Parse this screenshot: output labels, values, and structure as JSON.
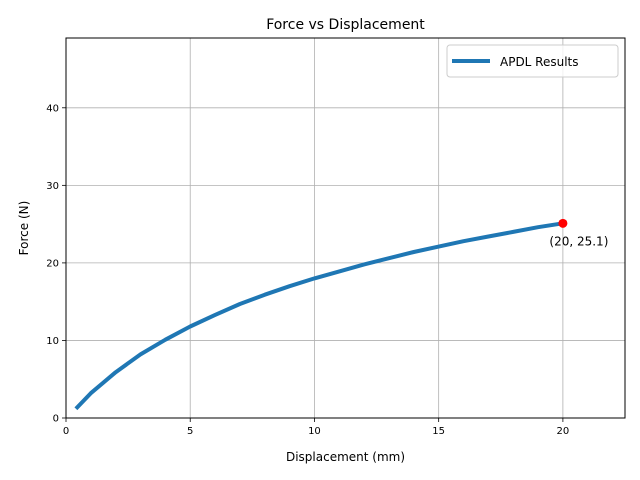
{
  "chart_data": {
    "type": "line",
    "title": "Force vs Displacement",
    "xlabel": "Displacement (mm)",
    "ylabel": "Force (N)",
    "xlim": [
      0,
      22.5
    ],
    "ylim": [
      0,
      49
    ],
    "xticks": [
      0,
      5,
      10,
      15,
      20
    ],
    "yticks": [
      0,
      10,
      20,
      30,
      40
    ],
    "grid": true,
    "legend_position": "top-right",
    "colors": {
      "series": "#1f77b4",
      "marker": "#ff0000"
    },
    "series": [
      {
        "name": "APDL Results",
        "x": [
          0.4,
          1,
          2,
          3,
          4,
          5,
          6,
          7,
          8,
          9,
          10,
          11,
          12,
          13,
          14,
          15,
          16,
          17,
          18,
          19,
          20
        ],
        "y": [
          1.2,
          3.2,
          5.9,
          8.2,
          10.1,
          11.8,
          13.3,
          14.7,
          15.9,
          17.0,
          18.0,
          18.9,
          19.8,
          20.6,
          21.4,
          22.1,
          22.8,
          23.4,
          24.0,
          24.6,
          25.1
        ]
      }
    ],
    "annotations": [
      {
        "x": 20,
        "y": 25.1,
        "text": "(20, 25.1)"
      }
    ]
  }
}
